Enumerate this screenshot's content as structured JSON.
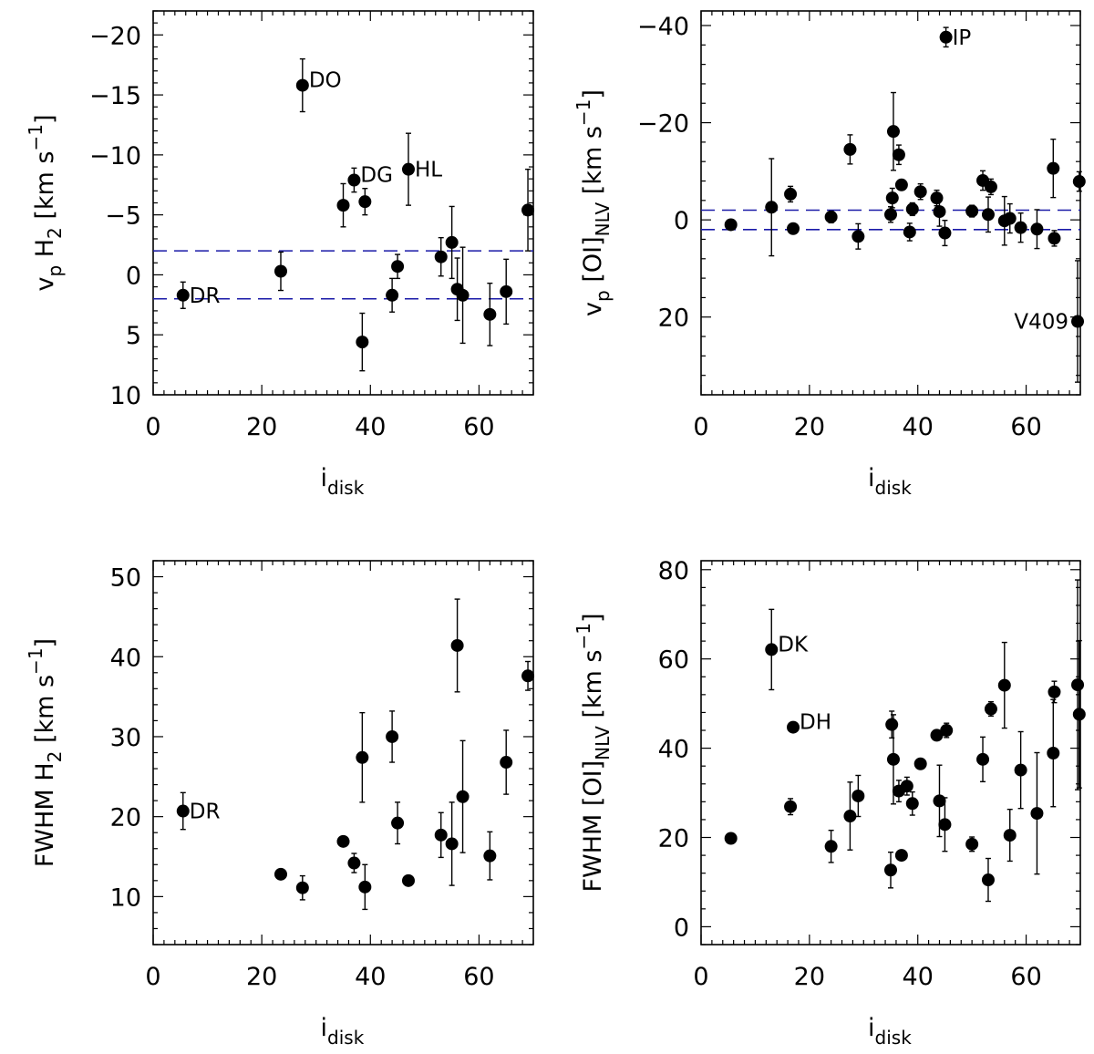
{
  "chart_data": [
    {
      "id": "vp-h2",
      "type": "scatter",
      "xlabel": {
        "main": "i",
        "sub": "disk"
      },
      "ylabel": {
        "pre": "v",
        "pre_sub": "p",
        "mid": " H",
        "mid_sub": "2",
        "post": " [km s",
        "post_sup": "−1",
        "end": "]"
      },
      "xlim": [
        0,
        70
      ],
      "ylim": [
        -22,
        10
      ],
      "y_inverted": true,
      "xticks": [
        0,
        20,
        40,
        60
      ],
      "xtick_labels": [
        "0",
        "20",
        "40",
        "60"
      ],
      "yticks": [
        -20,
        -15,
        -10,
        -5,
        0,
        5,
        10
      ],
      "ytick_labels": [
        "−20",
        "−15",
        "−10",
        "−5",
        "0",
        "5",
        "10"
      ],
      "reference_lines": [
        -2,
        2
      ],
      "points": [
        {
          "x": 5.5,
          "y": 1.7,
          "err": 1.1,
          "label": "DR"
        },
        {
          "x": 23.5,
          "y": -0.3,
          "err": 1.6
        },
        {
          "x": 27.5,
          "y": -15.8,
          "err": 2.2,
          "label": "DO"
        },
        {
          "x": 35,
          "y": -5.8,
          "err": 1.8
        },
        {
          "x": 37,
          "y": -7.9,
          "err": 1.0,
          "label": "DG"
        },
        {
          "x": 38.5,
          "y": 5.6,
          "err": 2.4
        },
        {
          "x": 39,
          "y": -6.1,
          "err": 1.1
        },
        {
          "x": 44,
          "y": 1.7,
          "err": 1.4
        },
        {
          "x": 45,
          "y": -0.7,
          "err": 1.0
        },
        {
          "x": 47,
          "y": -8.8,
          "err": 3.0,
          "label": "HL"
        },
        {
          "x": 53,
          "y": -1.5,
          "err": 1.6
        },
        {
          "x": 55,
          "y": -2.7,
          "err": 3.0
        },
        {
          "x": 56,
          "y": 1.2,
          "err": 2.6
        },
        {
          "x": 57,
          "y": 1.7,
          "err": 4.0
        },
        {
          "x": 62,
          "y": 3.3,
          "err": 2.6
        },
        {
          "x": 65,
          "y": 1.4,
          "err": 2.7
        },
        {
          "x": 69,
          "y": -5.4,
          "err": 3.4
        }
      ]
    },
    {
      "id": "vp-oi",
      "type": "scatter",
      "xlabel": {
        "main": "i",
        "sub": "disk"
      },
      "ylabel": {
        "pre": "v",
        "pre_sub": "p",
        "mid": " [OI]",
        "mid_sub": "NLV",
        "post": " [km s",
        "post_sup": "−1",
        "end": "]"
      },
      "xlim": [
        0,
        70
      ],
      "ylim": [
        -43,
        36
      ],
      "y_inverted": true,
      "xticks": [
        0,
        20,
        40,
        60
      ],
      "xtick_labels": [
        "0",
        "20",
        "40",
        "60"
      ],
      "yticks": [
        -40,
        -20,
        0,
        20
      ],
      "ytick_labels": [
        "−40",
        "−20",
        "0",
        "20"
      ],
      "reference_lines": [
        -2,
        2
      ],
      "points": [
        {
          "x": 5.5,
          "y": 1.0,
          "err": 1.0
        },
        {
          "x": 13,
          "y": -2.6,
          "err": 10
        },
        {
          "x": 16.5,
          "y": -5.3,
          "err": 1.6
        },
        {
          "x": 17,
          "y": 1.8,
          "err": 0.8
        },
        {
          "x": 24,
          "y": -0.6,
          "err": 1.2
        },
        {
          "x": 27.5,
          "y": -14.5,
          "err": 3.0
        },
        {
          "x": 29,
          "y": 3.4,
          "err": 2.6
        },
        {
          "x": 35,
          "y": -1.1,
          "err": 1.6
        },
        {
          "x": 35.3,
          "y": -4.5,
          "err": 2.0
        },
        {
          "x": 35.5,
          "y": -18.2,
          "err": 8.0
        },
        {
          "x": 36.5,
          "y": -13.4,
          "err": 2.0
        },
        {
          "x": 37,
          "y": -7.2,
          "err": 1.0
        },
        {
          "x": 38.5,
          "y": 2.5,
          "err": 1.8
        },
        {
          "x": 39,
          "y": -2.2,
          "err": 1.3
        },
        {
          "x": 40.5,
          "y": -5.8,
          "err": 1.6
        },
        {
          "x": 43.5,
          "y": -4.5,
          "err": 1.6
        },
        {
          "x": 44,
          "y": -1.7,
          "err": 3.0
        },
        {
          "x": 45,
          "y": 2.7,
          "err": 2.6
        },
        {
          "x": 45.2,
          "y": -37.6,
          "err": 2.0,
          "label": "IP"
        },
        {
          "x": 50,
          "y": -1.8,
          "err": 1.2
        },
        {
          "x": 52,
          "y": -8.1,
          "err": 2.0
        },
        {
          "x": 53,
          "y": -1.1,
          "err": 3.6
        },
        {
          "x": 53.5,
          "y": -6.8,
          "err": 1.6
        },
        {
          "x": 56,
          "y": 0.2,
          "err": 5.0
        },
        {
          "x": 57,
          "y": -0.3,
          "err": 3.0
        },
        {
          "x": 59,
          "y": 1.6,
          "err": 3.0
        },
        {
          "x": 62,
          "y": 1.9,
          "err": 4.0
        },
        {
          "x": 65,
          "y": -10.6,
          "err": 6.0
        },
        {
          "x": 65.2,
          "y": 3.8,
          "err": 1.6
        },
        {
          "x": 69.5,
          "y": 20.9,
          "err": 12.5,
          "label": "V409"
        },
        {
          "x": 69.8,
          "y": -7.9,
          "err": 2.0
        }
      ]
    },
    {
      "id": "fwhm-h2",
      "type": "scatter",
      "xlabel": {
        "main": "i",
        "sub": "disk"
      },
      "ylabel": {
        "pre": "FWHM",
        "pre_sub": "",
        "mid": " H",
        "mid_sub": "2",
        "post": " [km s",
        "post_sup": "−1",
        "end": "]"
      },
      "xlim": [
        0,
        70
      ],
      "ylim": [
        4,
        52
      ],
      "y_inverted": false,
      "xticks": [
        0,
        20,
        40,
        60
      ],
      "xtick_labels": [
        "0",
        "20",
        "40",
        "60"
      ],
      "yticks": [
        10,
        20,
        30,
        40,
        50
      ],
      "ytick_labels": [
        "10",
        "20",
        "30",
        "40",
        "50"
      ],
      "reference_lines": [],
      "points": [
        {
          "x": 5.5,
          "y": 20.7,
          "err": 2.3,
          "label": "DR"
        },
        {
          "x": 23.5,
          "y": 12.8,
          "err": 0
        },
        {
          "x": 27.5,
          "y": 11.1,
          "err": 1.5
        },
        {
          "x": 35,
          "y": 16.9,
          "err": 0
        },
        {
          "x": 37,
          "y": 14.2,
          "err": 1.2
        },
        {
          "x": 38.5,
          "y": 27.4,
          "err": 5.6
        },
        {
          "x": 39,
          "y": 11.2,
          "err": 2.8
        },
        {
          "x": 44,
          "y": 30.0,
          "err": 3.2
        },
        {
          "x": 45,
          "y": 19.2,
          "err": 2.6
        },
        {
          "x": 47,
          "y": 12.0,
          "err": 0
        },
        {
          "x": 53,
          "y": 17.7,
          "err": 2.8
        },
        {
          "x": 55,
          "y": 16.6,
          "err": 5.2
        },
        {
          "x": 56,
          "y": 41.4,
          "err": 5.8
        },
        {
          "x": 57,
          "y": 22.5,
          "err": 7.0
        },
        {
          "x": 62,
          "y": 15.1,
          "err": 3.0
        },
        {
          "x": 65,
          "y": 26.8,
          "err": 4.0
        },
        {
          "x": 69,
          "y": 37.6,
          "err": 1.8
        }
      ]
    },
    {
      "id": "fwhm-oi",
      "type": "scatter",
      "xlabel": {
        "main": "i",
        "sub": "disk"
      },
      "ylabel": {
        "pre": "FWHM",
        "pre_sub": "",
        "mid": " [OI]",
        "mid_sub": "NLV",
        "post": " [km s",
        "post_sup": "−1",
        "end": "]"
      },
      "xlim": [
        0,
        70
      ],
      "ylim": [
        -4,
        82
      ],
      "y_inverted": false,
      "xticks": [
        0,
        20,
        40,
        60
      ],
      "xtick_labels": [
        "0",
        "20",
        "40",
        "60"
      ],
      "yticks": [
        0,
        20,
        40,
        60,
        80
      ],
      "ytick_labels": [
        "0",
        "20",
        "40",
        "60",
        "80"
      ],
      "reference_lines": [],
      "points": [
        {
          "x": 5.5,
          "y": 19.8,
          "err": 1.0
        },
        {
          "x": 13,
          "y": 62.1,
          "err": 9.0,
          "label": "DK"
        },
        {
          "x": 16.5,
          "y": 26.9,
          "err": 1.8
        },
        {
          "x": 17,
          "y": 44.7,
          "err": 0,
          "label": "DH"
        },
        {
          "x": 24,
          "y": 18.0,
          "err": 3.6
        },
        {
          "x": 27.5,
          "y": 24.8,
          "err": 7.6
        },
        {
          "x": 29,
          "y": 29.3,
          "err": 4.6
        },
        {
          "x": 35,
          "y": 12.7,
          "err": 4.0
        },
        {
          "x": 35.2,
          "y": 45.3,
          "err": 3.0
        },
        {
          "x": 35.5,
          "y": 37.5,
          "err": 10.0
        },
        {
          "x": 36.5,
          "y": 30.4,
          "err": 2.4
        },
        {
          "x": 37,
          "y": 16.0,
          "err": 0
        },
        {
          "x": 38,
          "y": 31.5,
          "err": 2.0
        },
        {
          "x": 39,
          "y": 27.6,
          "err": 2.6
        },
        {
          "x": 40.5,
          "y": 36.5,
          "err": 0
        },
        {
          "x": 43.5,
          "y": 42.9,
          "err": 0
        },
        {
          "x": 44,
          "y": 28.2,
          "err": 8.0
        },
        {
          "x": 45,
          "y": 22.9,
          "err": 6.0
        },
        {
          "x": 45.3,
          "y": 44.0,
          "err": 1.6
        },
        {
          "x": 50,
          "y": 18.5,
          "err": 1.6
        },
        {
          "x": 52,
          "y": 37.5,
          "err": 5.0
        },
        {
          "x": 53,
          "y": 10.5,
          "err": 4.8
        },
        {
          "x": 53.5,
          "y": 48.8,
          "err": 1.6
        },
        {
          "x": 56,
          "y": 54.1,
          "err": 9.6
        },
        {
          "x": 57,
          "y": 20.5,
          "err": 5.8
        },
        {
          "x": 59,
          "y": 35.1,
          "err": 8.6
        },
        {
          "x": 62,
          "y": 25.4,
          "err": 13.6
        },
        {
          "x": 65,
          "y": 38.9,
          "err": 12.0
        },
        {
          "x": 65.2,
          "y": 52.6,
          "err": 2.4
        },
        {
          "x": 69.5,
          "y": 54.2,
          "err": 23.5
        },
        {
          "x": 69.8,
          "y": 47.6,
          "err": 16.5
        }
      ]
    }
  ],
  "colors": {
    "axes": "#000000",
    "markers": "#000000",
    "reference_line": "#1a1aa8",
    "background": "#ffffff"
  }
}
